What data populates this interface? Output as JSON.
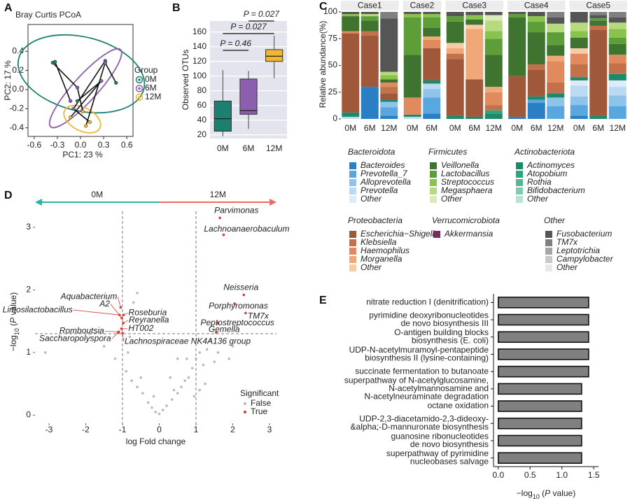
{
  "chart_data": [
    {
      "type": "scatter",
      "panel": "A",
      "title": "Bray Curtis PCoA",
      "x_label": "PC1:  23 %",
      "y_label": "PC2:  17 %",
      "xlim": [
        -0.68,
        0.68
      ],
      "ylim": [
        -0.49,
        0.68
      ],
      "xticks": [
        -0.6,
        -0.3,
        {
          "value": 0,
          "label": "0.0"
        },
        0.3,
        0.6
      ],
      "yticks": [
        -0.4,
        -0.2,
        {
          "value": 0,
          "label": "0.0"
        },
        0.2,
        0.4
      ],
      "legend_title": "Group",
      "series": [
        {
          "name": "0M",
          "color": "#1b8070",
          "x": [
            -0.36,
            -0.33,
            0.32,
            0.46,
            -0.04
          ],
          "y": [
            0.28,
            0.29,
            0.3,
            0.07,
            -0.12
          ]
        },
        {
          "name": "6M",
          "color": "#8c5fae",
          "x": [
            -0.04,
            -0.13,
            -0.09,
            0.32,
            0.27
          ],
          "y": [
            0.02,
            -0.12,
            -0.2,
            0.28,
            0.09
          ]
        },
        {
          "name": "12M",
          "color": "#f2b632",
          "x": [
            0.03,
            null,
            0.12,
            0.07,
            -0.13
          ],
          "y": [
            -0.23,
            null,
            -0.34,
            -0.38,
            -0.29
          ]
        }
      ]
    },
    {
      "type": "box",
      "panel": "B",
      "y_label": "Observed OTUs",
      "categories": [
        "0M",
        "6M",
        "12M"
      ],
      "colors": [
        "#1b8070",
        "#8c5fae",
        "#f2b632"
      ],
      "whisker_low": [
        18,
        28,
        97
      ],
      "q1": [
        25,
        48,
        120
      ],
      "median": [
        42,
        53,
        127
      ],
      "q3": [
        66,
        96,
        136
      ],
      "whisker_high": [
        108,
        107,
        155
      ],
      "ylim": [
        15,
        175
      ],
      "yticks": [
        20,
        40,
        60,
        80,
        100,
        120,
        140,
        160
      ],
      "grid": true,
      "comparisons": [
        "P = 0.46",
        "P = 0.027",
        "P = 0.027"
      ]
    },
    {
      "type": "stacked_bar",
      "panel": "C",
      "y_label": "Relative abundance(%)",
      "ylim": [
        0,
        100
      ],
      "yticks": [
        0,
        25,
        50,
        75,
        100
      ],
      "cases": [
        {
          "name": "Case1",
          "categories": [
            "0M",
            "6M",
            "12M"
          ]
        },
        {
          "name": "Case2",
          "categories": [
            "0M",
            "6M"
          ]
        },
        {
          "name": "Case3",
          "categories": [
            "0M",
            "6M",
            "12M"
          ]
        },
        {
          "name": "Case4",
          "categories": [
            "0M",
            "6M",
            "12M"
          ]
        },
        {
          "name": "Case5",
          "categories": [
            "0M",
            "6M",
            "12M"
          ]
        }
      ],
      "groups": [
        {
          "name": "Bacteroidota",
          "series": [
            {
              "name": "Bacteroides",
              "color": "#2a7fc4",
              "values": [
                0,
                30,
                3,
                0,
                5,
                0,
                0,
                0,
                2,
                15,
                0,
                3,
                0,
                0
              ]
            },
            {
              "name": "Prevotella_7",
              "color": "#5aa6de",
              "values": [
                0,
                0,
                8,
                0,
                15,
                0,
                0,
                0,
                0,
                3,
                12,
                10,
                0,
                12
              ]
            },
            {
              "name": "Alloprevotella",
              "color": "#8ec4ea",
              "values": [
                0,
                0,
                5,
                0,
                8,
                0,
                0,
                0,
                0,
                0,
                8,
                8,
                0,
                10
              ]
            },
            {
              "name": "Prevotella",
              "color": "#b9daf2",
              "values": [
                2,
                0,
                0,
                2,
                5,
                0,
                0,
                0,
                0,
                0,
                0,
                10,
                0,
                8
              ]
            },
            {
              "name": "Other",
              "color": "#dcebf7",
              "values": [
                0,
                0,
                0,
                0,
                0,
                0,
                0,
                0,
                0,
                0,
                0,
                5,
                0,
                6
              ]
            }
          ]
        },
        {
          "name": "Firmicutes",
          "series": [
            {
              "name": "Veillonella",
              "color": "#3f7430",
              "values": [
                14,
                10,
                3,
                40,
                8,
                20,
                5,
                30,
                55,
                30,
                10,
                10,
                5,
                10
              ]
            },
            {
              "name": "Lactobacillus",
              "color": "#5e9e38",
              "values": [
                0,
                4,
                0,
                35,
                10,
                5,
                0,
                15,
                3,
                10,
                12,
                0,
                2,
                6
              ]
            },
            {
              "name": "Streptococcus",
              "color": "#88c34c",
              "values": [
                2,
                0,
                4,
                3,
                3,
                0,
                4,
                7,
                0,
                5,
                0,
                6,
                0,
                8
              ]
            },
            {
              "name": "Megasphaera",
              "color": "#b8da7e",
              "values": [
                0,
                2,
                3,
                0,
                0,
                0,
                0,
                10,
                0,
                0,
                8,
                8,
                0,
                6
              ]
            },
            {
              "name": "Other",
              "color": "#dcecb8",
              "values": [
                0,
                0,
                0,
                0,
                0,
                0,
                0,
                5,
                0,
                0,
                0,
                0,
                0,
                0
              ]
            }
          ]
        },
        {
          "name": "Actinobacteriota",
          "series": [
            {
              "name": "Actinomyces",
              "color": "#1a8a6a",
              "values": [
                4,
                0,
                2,
                2,
                3,
                3,
                2,
                5,
                0,
                3,
                4,
                3,
                3,
                6
              ]
            },
            {
              "name": "Atopobium",
              "color": "#2aa57e",
              "values": [
                0,
                0,
                0,
                0,
                0,
                0,
                0,
                3,
                0,
                0,
                0,
                0,
                0,
                0
              ]
            },
            {
              "name": "Rothia",
              "color": "#50b896",
              "values": [
                0,
                0,
                0,
                0,
                0,
                0,
                0,
                0,
                0,
                0,
                0,
                0,
                0,
                0
              ]
            },
            {
              "name": "Bifidobacterium",
              "color": "#7fcbb0",
              "values": [
                0,
                0,
                0,
                0,
                0,
                0,
                0,
                0,
                0,
                0,
                0,
                0,
                0,
                0
              ]
            },
            {
              "name": "Other",
              "color": "#b8e2d2",
              "values": [
                0,
                0,
                0,
                0,
                0,
                0,
                0,
                0,
                0,
                0,
                0,
                0,
                0,
                0
              ]
            }
          ]
        },
        {
          "name": "Proteobacteria",
          "series": [
            {
              "name": "Escherichia−Shigella",
              "color": "#a0583a",
              "values": [
                74,
                48,
                6,
                0,
                30,
                53,
                35,
                0,
                38,
                25,
                0,
                0,
                80,
                0
              ]
            },
            {
              "name": "Klebsiella",
              "color": "#c2714a",
              "values": [
                0,
                4,
                6,
                0,
                0,
                5,
                0,
                5,
                0,
                5,
                10,
                12,
                4,
                10
              ]
            },
            {
              "name": "Haemophilus",
              "color": "#e08a5e",
              "values": [
                2,
                0,
                4,
                16,
                8,
                0,
                0,
                12,
                0,
                0,
                20,
                10,
                0,
                8
              ]
            },
            {
              "name": "Morganella",
              "color": "#f0a878",
              "values": [
                0,
                0,
                0,
                0,
                3,
                5,
                47,
                5,
                0,
                0,
                5,
                0,
                0,
                0
              ]
            },
            {
              "name": "Other",
              "color": "#f7cba8",
              "values": [
                0,
                0,
                0,
                0,
                0,
                5,
                4,
                0,
                0,
                0,
                0,
                5,
                0,
                0
              ]
            }
          ]
        },
        {
          "name": "Verrucomicrobiota",
          "series": [
            {
              "name": "Akkermansia",
              "color": "#7b2a5a",
              "values": [
                0,
                0,
                0,
                0,
                0,
                0,
                0,
                0,
                0,
                0,
                0,
                0,
                0,
                0
              ]
            }
          ]
        },
        {
          "name": "Other",
          "series": [
            {
              "name": "Fusobacterium",
              "color": "#555555",
              "values": [
                2,
                2,
                50,
                2,
                2,
                4,
                3,
                3,
                2,
                4,
                6,
                10,
                3,
                5
              ]
            },
            {
              "name": "TM7x",
              "color": "#808080",
              "values": [
                0,
                0,
                6,
                0,
                0,
                0,
                0,
                0,
                0,
                0,
                5,
                0,
                3,
                5
              ]
            },
            {
              "name": "Leptotrichia",
              "color": "#a6a6a6",
              "values": [
                0,
                0,
                0,
                0,
                0,
                0,
                0,
                0,
                0,
                0,
                0,
                0,
                0,
                0
              ]
            },
            {
              "name": "Campylobacter",
              "color": "#c8c8c8",
              "values": [
                0,
                0,
                0,
                0,
                0,
                0,
                0,
                0,
                0,
                0,
                0,
                0,
                0,
                0
              ]
            },
            {
              "name": "Other",
              "color": "#e8e8e8",
              "values": [
                0,
                0,
                0,
                0,
                0,
                0,
                0,
                0,
                0,
                0,
                0,
                0,
                0,
                0
              ]
            }
          ]
        }
      ]
    },
    {
      "type": "volcano",
      "panel": "D",
      "x_label": "log Fold change",
      "y_label": {
        "prefix": "−log",
        "sub": "10",
        "open": " (",
        "italic": "P",
        "close": " value)"
      },
      "arrow_labels": [
        "0M",
        "12M"
      ],
      "arrow_colors": [
        "#2bb5a5",
        "#ee6a5e"
      ],
      "xlim": [
        -3.38,
        3.19
      ],
      "ylim": [
        -0.13,
        3.39
      ],
      "xticks": [
        -3,
        -2,
        -1,
        0,
        1,
        2,
        3
      ],
      "yticks": [
        0,
        1,
        2,
        3
      ],
      "fold_threshold": [
        -1,
        1
      ],
      "p_threshold": 1.3,
      "legend_title": "Significant",
      "series": [
        {
          "name": "False",
          "color": "#b8b8b8",
          "x": [
            -0.1,
            0.1,
            0.2,
            -0.2,
            0.35,
            0.5,
            0.6,
            0.7,
            0.8,
            0.9,
            1.0,
            1.1,
            1.2,
            1.3,
            1.4,
            1.5,
            1.6,
            0.4,
            0.75,
            -0.3,
            -0.45,
            -0.6,
            -0.75,
            -0.9,
            -0.85,
            -0.5,
            -1.2,
            -1.5,
            -1.9,
            -3.1,
            -0.6,
            -0.7,
            -0.8,
            0.5,
            0.3,
            1.1,
            0.95,
            1.25,
            -0.15,
            0.0,
            2.0,
            1.9
          ],
          "y": [
            0.05,
            0.08,
            0.15,
            0.12,
            0.25,
            0.35,
            0.45,
            0.55,
            0.6,
            0.75,
            0.9,
            1.0,
            0.8,
            1.05,
            1.2,
            0.85,
            1.0,
            0.4,
            0.9,
            0.2,
            0.35,
            0.45,
            0.55,
            0.7,
            1.0,
            0.6,
            0.9,
            1.1,
            1.3,
            1.0,
            1.95,
            1.8,
            1.25,
            0.9,
            0.6,
            0.4,
            0.3,
            0.5,
            0.3,
            0.02,
            1.1,
            0.9
          ]
        },
        {
          "name": "True",
          "color": "#e0382f",
          "x": [
            -1.05,
            -1.02,
            -1.08,
            -0.97,
            -0.98,
            -1.03,
            -1.1,
            -1.12,
            -1.0,
            1.65,
            1.75,
            2.3,
            2.05,
            2.35,
            1.6,
            1.55
          ],
          "y": [
            1.72,
            1.55,
            1.6,
            1.6,
            1.47,
            1.38,
            1.33,
            1.32,
            1.31,
            3.15,
            2.88,
            1.92,
            1.78,
            1.63,
            1.47,
            1.32
          ],
          "point_labels": [
            "Aquabacterium",
            "A2",
            "Limosilactobacillus",
            "Roseburia",
            "Reyranella",
            "HT002",
            "Romboutsia",
            "Saccharopolyspora",
            "Lachnospiraceae NK4A136 group",
            "Parvimonas",
            "Lachnoanaerobaculum",
            "Neisseria",
            "Porphyromonas",
            "TM7x",
            "Peptostreptococcus",
            "Gemella"
          ]
        }
      ]
    },
    {
      "type": "hbar",
      "panel": "E",
      "color": "#808080",
      "categories": [
        [
          "nitrate reduction I (denitrification)"
        ],
        [
          "pyrimidine deoxyribonucleotides",
          "de novo biosynthesis III"
        ],
        [
          "O-antigen building blocks",
          "biosynthesis (E. coli)"
        ],
        [
          "UDP-N-acetylmuramoyl-pentapeptide",
          "biosynthesis II (lysine-containing)"
        ],
        [
          "succinate fermentation to butanoate"
        ],
        [
          "superpathway of N-acetylglucosamine,",
          "N-acetylmannosamine and",
          "N-acetylneuraminate degradation"
        ],
        [
          "octane oxidation"
        ],
        [
          "UDP-2,3-diacetamido-2,3-dideoxy-",
          "&alpha;-D-mannuronate biosynthesis"
        ],
        [
          "guanosine ribonucleotides",
          "de novo biosynthesis"
        ],
        [
          "superpathway of pyrimidine",
          "nucleobases salvage"
        ]
      ],
      "values": [
        1.42,
        1.42,
        1.42,
        1.42,
        1.42,
        1.31,
        1.31,
        1.31,
        1.31,
        1.31
      ],
      "xlim": [
        -0.075,
        1.575
      ],
      "xticks": [
        {
          "value": 0,
          "label": "0.0"
        },
        0.5,
        {
          "value": 1,
          "label": "1.0"
        },
        1.5
      ],
      "x_label": {
        "prefix": "−log",
        "sub": "10",
        "open": " (",
        "italic": "P",
        "close": " value)"
      }
    }
  ]
}
